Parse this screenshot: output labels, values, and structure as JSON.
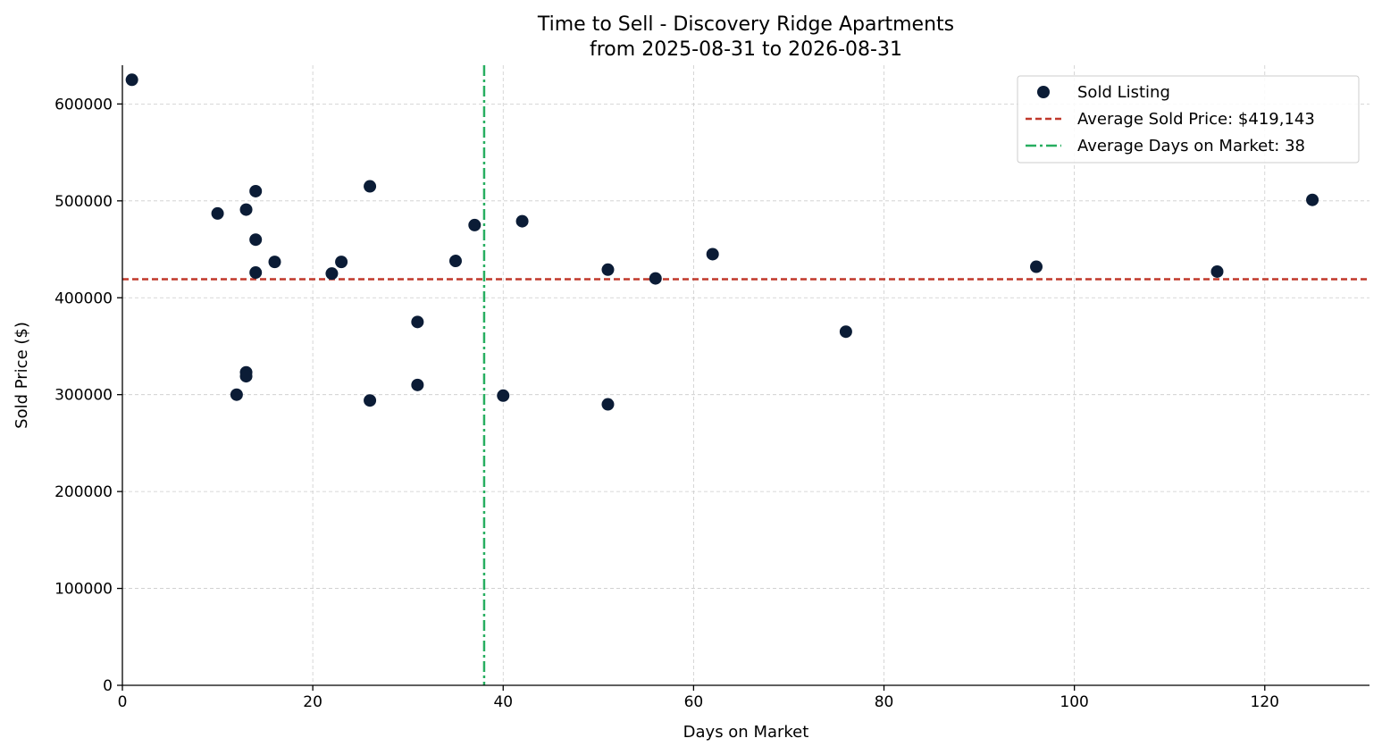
{
  "chart_data": {
    "type": "scatter",
    "title": "Time to Sell - Discovery Ridge Apartments",
    "subtitle": "from 2025-08-31 to 2026-08-31",
    "xlabel": "Days on Market",
    "ylabel": "Sold Price ($)",
    "xlim": [
      0,
      131
    ],
    "ylim": [
      0,
      640000
    ],
    "xticks": [
      0,
      20,
      40,
      60,
      80,
      100,
      120
    ],
    "yticks": [
      0,
      100000,
      200000,
      300000,
      400000,
      500000,
      600000
    ],
    "grid": true,
    "legend_position": "top-right",
    "series": [
      {
        "name": "Sold Listing",
        "color": "#0b1c36",
        "points": [
          {
            "x": 1,
            "y": 625000
          },
          {
            "x": 10,
            "y": 487000
          },
          {
            "x": 12,
            "y": 300000
          },
          {
            "x": 13,
            "y": 491000
          },
          {
            "x": 13,
            "y": 323000
          },
          {
            "x": 13,
            "y": 319000
          },
          {
            "x": 14,
            "y": 510000
          },
          {
            "x": 14,
            "y": 460000
          },
          {
            "x": 14,
            "y": 426000
          },
          {
            "x": 16,
            "y": 437000
          },
          {
            "x": 22,
            "y": 425000
          },
          {
            "x": 23,
            "y": 437000
          },
          {
            "x": 26,
            "y": 515000
          },
          {
            "x": 26,
            "y": 294000
          },
          {
            "x": 31,
            "y": 375000
          },
          {
            "x": 31,
            "y": 310000
          },
          {
            "x": 35,
            "y": 438000
          },
          {
            "x": 37,
            "y": 475000
          },
          {
            "x": 40,
            "y": 299000
          },
          {
            "x": 42,
            "y": 479000
          },
          {
            "x": 51,
            "y": 429000
          },
          {
            "x": 51,
            "y": 290000
          },
          {
            "x": 56,
            "y": 420000
          },
          {
            "x": 62,
            "y": 445000
          },
          {
            "x": 76,
            "y": 365000
          },
          {
            "x": 96,
            "y": 432000
          },
          {
            "x": 115,
            "y": 427000
          },
          {
            "x": 125,
            "y": 501000
          }
        ]
      }
    ],
    "reference_lines": [
      {
        "name": "Average Sold Price: $419,143",
        "orientation": "horizontal",
        "value": 419143,
        "color": "#c0392b",
        "style": "dashed"
      },
      {
        "name": "Average Days on Market: 38",
        "orientation": "vertical",
        "value": 38,
        "color": "#27ae60",
        "style": "dashdot"
      }
    ]
  }
}
